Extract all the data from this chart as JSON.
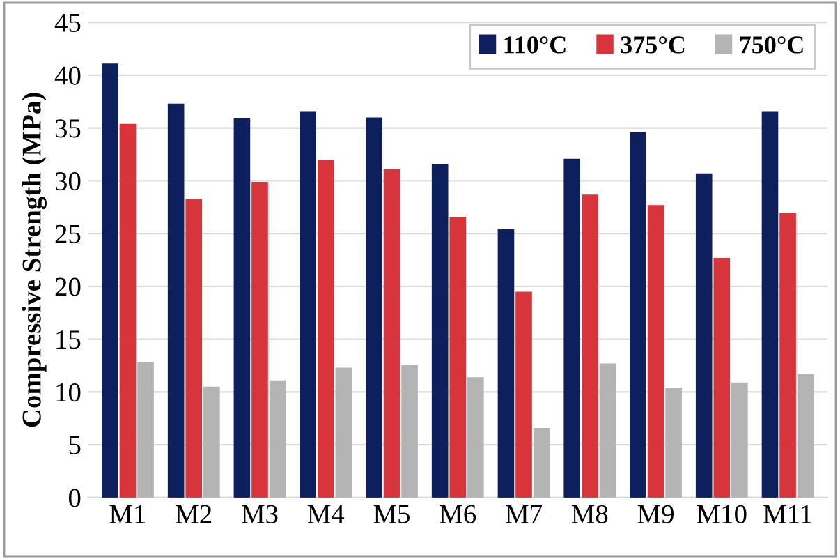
{
  "chart_data": {
    "type": "bar",
    "ylabel": "Compressive Strength (MPa)",
    "categories": [
      "M1",
      "M2",
      "M3",
      "M4",
      "M5",
      "M6",
      "M7",
      "M8",
      "M9",
      "M10",
      "M11"
    ],
    "series": [
      {
        "name": "110°C",
        "color": "#0d1f5c",
        "values": [
          41.0,
          37.2,
          35.8,
          36.5,
          35.9,
          31.5,
          25.3,
          32.0,
          34.5,
          30.6,
          36.5
        ]
      },
      {
        "name": "375°C",
        "color": "#d8343c",
        "values": [
          35.3,
          28.2,
          29.8,
          31.9,
          31.0,
          26.5,
          19.4,
          28.6,
          27.6,
          22.6,
          26.9
        ]
      },
      {
        "name": "750°C",
        "color": "#b4b4b4",
        "values": [
          12.7,
          10.4,
          11.0,
          12.2,
          12.5,
          11.3,
          6.5,
          12.6,
          10.3,
          10.8,
          11.6
        ]
      }
    ],
    "ylim": [
      0,
      45
    ],
    "yticks": [
      0,
      5,
      10,
      15,
      20,
      25,
      30,
      35,
      40,
      45
    ],
    "grid": "y",
    "legend": "top right"
  }
}
